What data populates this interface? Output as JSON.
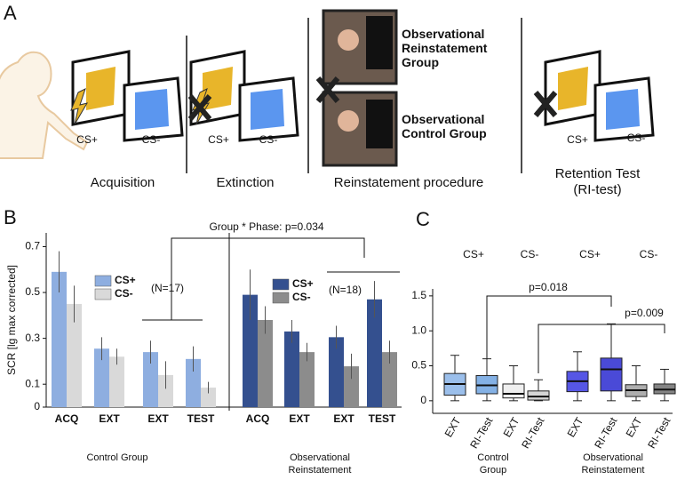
{
  "panel_a": {
    "label": "A",
    "stages": [
      {
        "name": "Acquisition",
        "cs_plus": "CS+",
        "cs_minus": "CS-"
      },
      {
        "name": "Extinction",
        "cs_plus": "CS+",
        "cs_minus": "CS-"
      },
      {
        "name": "Reinstatement procedure",
        "groups": [
          "Observational Reinstatement Group",
          "Observational Control Group"
        ]
      },
      {
        "name": "Retention Test (RI-test)",
        "cs_plus": "CS+",
        "cs_minus": "CS-"
      }
    ]
  },
  "chart_data": [
    {
      "type": "bar",
      "panel": "B",
      "y_label": "SCR [lg max corrected]",
      "annotation": "Group * Phase: p=0.034",
      "ylim": [
        0,
        0.76
      ],
      "yticks": [
        0,
        0.1,
        0.3,
        0.5,
        0.7
      ],
      "groups": [
        {
          "name": "Control Group",
          "n_label": "(N=17)",
          "categories": [
            "ACQ",
            "EXT",
            "EXT",
            "TEST"
          ],
          "series": [
            {
              "name": "CS+",
              "color": "#8eaee0",
              "values": [
                0.59,
                0.255,
                0.24,
                0.21
              ],
              "errors": [
                0.09,
                0.05,
                0.05,
                0.055
              ]
            },
            {
              "name": "CS-",
              "color": "#d9d9d9",
              "values": [
                0.45,
                0.22,
                0.14,
                0.085
              ],
              "errors": [
                0.08,
                0.035,
                0.06,
                0.025
              ]
            }
          ]
        },
        {
          "name": "Observational Reinstatement",
          "n_label": "(N=18)",
          "categories": [
            "ACQ",
            "EXT",
            "EXT",
            "TEST"
          ],
          "series": [
            {
              "name": "CS+",
              "color": "#34508f",
              "values": [
                0.49,
                0.33,
                0.305,
                0.47
              ],
              "errors": [
                0.11,
                0.05,
                0.05,
                0.08
              ]
            },
            {
              "name": "CS-",
              "color": "#8c8c8c",
              "values": [
                0.38,
                0.24,
                0.178,
                0.24
              ],
              "errors": [
                0.06,
                0.04,
                0.055,
                0.05
              ]
            }
          ]
        }
      ]
    },
    {
      "type": "box",
      "panel": "C",
      "ylim": [
        -0.18,
        1.6
      ],
      "yticks": [
        0,
        0.5,
        {
          "value": 1,
          "label": "1.0"
        },
        1.5
      ],
      "annotations": [
        "p=0.018",
        "p=0.009"
      ],
      "groups": [
        {
          "name": "Control Group",
          "conditions": [
            "CS+",
            "CS-"
          ],
          "categories": [
            "EXT",
            "RI-Test",
            "EXT",
            "RI-Test"
          ],
          "colors": [
            "#8ab4e8",
            "#6fa3e0",
            "#ececec",
            "#cfcfcf"
          ],
          "boxes": [
            {
              "min": 0,
              "q1": 0.08,
              "median": 0.24,
              "q3": 0.39,
              "max": 0.65
            },
            {
              "min": 0,
              "q1": 0.1,
              "median": 0.22,
              "q3": 0.36,
              "max": 0.6
            },
            {
              "min": 0,
              "q1": 0.04,
              "median": 0.1,
              "q3": 0.24,
              "max": 0.5
            },
            {
              "min": 0,
              "q1": 0.01,
              "median": 0.06,
              "q3": 0.14,
              "max": 0.3
            }
          ]
        },
        {
          "name": "Observational Reinstatement",
          "conditions": [
            "CS+",
            "CS-"
          ],
          "categories": [
            "EXT",
            "RI-Test",
            "EXT",
            "RI-Test"
          ],
          "colors": [
            "#3838e0",
            "#2a2ad0",
            "#a0a0a0",
            "#6e6e6e"
          ],
          "boxes": [
            {
              "min": 0,
              "q1": 0.13,
              "median": 0.28,
              "q3": 0.42,
              "max": 0.7
            },
            {
              "min": 0,
              "q1": 0.14,
              "median": 0.45,
              "q3": 0.61,
              "max": 1.1
            },
            {
              "min": 0,
              "q1": 0.06,
              "median": 0.15,
              "q3": 0.23,
              "max": 0.5
            },
            {
              "min": 0,
              "q1": 0.1,
              "median": 0.16,
              "q3": 0.24,
              "max": 0.45
            }
          ]
        }
      ]
    }
  ]
}
